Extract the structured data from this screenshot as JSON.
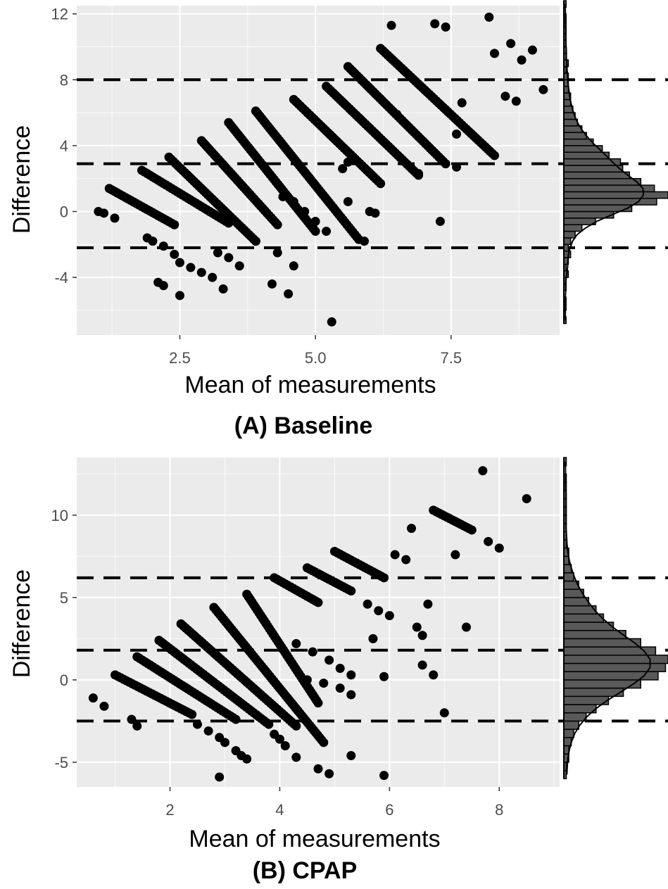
{
  "colors": {
    "panel_background": "#ebebeb",
    "grid_major": "#ffffff",
    "points": "#000000",
    "reference_lines": "#000000",
    "histogram_fill": "#595959",
    "histogram_stroke": "#000000",
    "tick_text": "#4d4d4d"
  },
  "chart_data": [
    {
      "type": "scatter",
      "caption": "(A) Baseline",
      "xlabel": "Mean of measurements",
      "ylabel": "Difference",
      "xlim": [
        0.6,
        9.5
      ],
      "ylim": [
        -7.5,
        12.5
      ],
      "x_ticks": [
        2.5,
        5.0,
        7.5
      ],
      "x_tick_labels": [
        "2.5",
        "5.0",
        "7.5"
      ],
      "y_ticks": [
        -4,
        0,
        4,
        8,
        12
      ],
      "y_tick_labels": [
        "-4",
        "0",
        "4",
        "8",
        "12"
      ],
      "grid": true,
      "reference_lines": {
        "style": "dashed",
        "mean_difference": 2.9,
        "upper_limit": 8.0,
        "lower_limit": -2.2
      },
      "diagonal_bands": [
        {
          "x_start": 1.2,
          "y_start": 1.4,
          "x_end": 2.4,
          "y_end": -0.8
        },
        {
          "x_start": 1.8,
          "y_start": 2.5,
          "x_end": 3.4,
          "y_end": -0.7
        },
        {
          "x_start": 2.3,
          "y_start": 3.3,
          "x_end": 3.9,
          "y_end": -1.8
        },
        {
          "x_start": 2.9,
          "y_start": 4.3,
          "x_end": 4.3,
          "y_end": -0.8
        },
        {
          "x_start": 3.4,
          "y_start": 5.4,
          "x_end": 5.0,
          "y_end": -1.2
        },
        {
          "x_start": 3.9,
          "y_start": 6.1,
          "x_end": 5.8,
          "y_end": -1.7
        },
        {
          "x_start": 4.6,
          "y_start": 6.8,
          "x_end": 6.2,
          "y_end": 1.7
        },
        {
          "x_start": 5.2,
          "y_start": 7.6,
          "x_end": 6.9,
          "y_end": 2.2
        },
        {
          "x_start": 5.6,
          "y_start": 8.8,
          "x_end": 7.4,
          "y_end": 2.9
        },
        {
          "x_start": 6.2,
          "y_start": 9.9,
          "x_end": 8.3,
          "y_end": 3.4
        }
      ],
      "extra_points": [
        [
          1.0,
          0.0
        ],
        [
          1.1,
          -0.1
        ],
        [
          1.3,
          -0.4
        ],
        [
          1.9,
          -1.6
        ],
        [
          2.0,
          -1.8
        ],
        [
          2.2,
          -2.1
        ],
        [
          2.4,
          -2.6
        ],
        [
          2.5,
          -3.1
        ],
        [
          2.7,
          -3.4
        ],
        [
          2.9,
          -3.7
        ],
        [
          3.1,
          -4.0
        ],
        [
          2.1,
          -4.3
        ],
        [
          2.2,
          -4.5
        ],
        [
          2.5,
          -5.1
        ],
        [
          3.2,
          -2.5
        ],
        [
          3.4,
          -2.8
        ],
        [
          3.6,
          -3.3
        ],
        [
          3.3,
          -4.7
        ],
        [
          4.2,
          -4.4
        ],
        [
          4.5,
          -5.0
        ],
        [
          4.6,
          -3.3
        ],
        [
          4.3,
          -2.5
        ],
        [
          3.9,
          -1.8
        ],
        [
          4.4,
          0.9
        ],
        [
          4.6,
          0.6
        ],
        [
          4.8,
          0.0
        ],
        [
          5.0,
          -0.6
        ],
        [
          5.2,
          -1.2
        ],
        [
          5.3,
          -6.7
        ],
        [
          5.6,
          0.6
        ],
        [
          5.9,
          -1.8
        ],
        [
          6.0,
          0.0
        ],
        [
          6.1,
          -0.1
        ],
        [
          7.3,
          -0.6
        ],
        [
          6.4,
          11.3
        ],
        [
          7.2,
          11.4
        ],
        [
          7.4,
          11.2
        ],
        [
          8.2,
          11.8
        ],
        [
          8.6,
          10.2
        ],
        [
          9.0,
          9.8
        ],
        [
          8.3,
          9.6
        ],
        [
          8.8,
          9.2
        ],
        [
          9.2,
          7.4
        ],
        [
          8.5,
          7.0
        ],
        [
          8.7,
          6.7
        ],
        [
          7.7,
          6.6
        ],
        [
          7.6,
          4.7
        ],
        [
          7.6,
          2.7
        ],
        [
          6.9,
          2.3
        ],
        [
          6.5,
          5.9
        ],
        [
          5.6,
          3.0
        ],
        [
          5.5,
          2.6
        ]
      ],
      "marginal_histogram": {
        "bin_start": -6.8,
        "bin_width": 0.4,
        "counts": [
          1,
          0,
          1,
          1,
          0,
          1,
          1,
          2,
          1,
          2,
          3,
          2,
          3,
          5,
          8,
          14,
          22,
          30,
          41,
          46,
          40,
          34,
          29,
          26,
          25,
          20,
          17,
          13,
          10,
          8,
          6,
          5,
          4,
          3,
          3,
          2,
          2,
          2,
          1,
          2,
          1,
          1,
          1,
          1,
          1,
          1,
          1,
          0,
          1
        ]
      }
    },
    {
      "type": "scatter",
      "caption": "(B) CPAP",
      "xlabel": "Mean of measurements",
      "ylabel": "Difference",
      "xlim": [
        0.3,
        9.1
      ],
      "ylim": [
        -6.5,
        13.5
      ],
      "x_ticks": [
        2,
        4,
        6,
        8
      ],
      "x_tick_labels": [
        "2",
        "4",
        "6",
        "8"
      ],
      "y_ticks": [
        -5,
        0,
        5,
        10
      ],
      "y_tick_labels": [
        "-5",
        "0",
        "5",
        "10"
      ],
      "grid": true,
      "reference_lines": {
        "style": "dashed",
        "mean_difference": 1.8,
        "upper_limit": 6.2,
        "lower_limit": -2.5
      },
      "diagonal_bands": [
        {
          "x_start": 1.0,
          "y_start": 0.3,
          "x_end": 2.4,
          "y_end": -2.1
        },
        {
          "x_start": 1.4,
          "y_start": 1.4,
          "x_end": 3.2,
          "y_end": -2.4
        },
        {
          "x_start": 1.8,
          "y_start": 2.4,
          "x_end": 3.8,
          "y_end": -2.7
        },
        {
          "x_start": 2.2,
          "y_start": 3.4,
          "x_end": 4.3,
          "y_end": -2.8
        },
        {
          "x_start": 2.8,
          "y_start": 4.4,
          "x_end": 4.8,
          "y_end": -3.8
        },
        {
          "x_start": 3.4,
          "y_start": 5.2,
          "x_end": 4.7,
          "y_end": -1.4
        },
        {
          "x_start": 3.9,
          "y_start": 6.2,
          "x_end": 4.7,
          "y_end": 4.7
        },
        {
          "x_start": 4.5,
          "y_start": 6.8,
          "x_end": 5.3,
          "y_end": 5.4
        },
        {
          "x_start": 5.0,
          "y_start": 7.8,
          "x_end": 5.9,
          "y_end": 6.2
        },
        {
          "x_start": 6.8,
          "y_start": 10.3,
          "x_end": 7.5,
          "y_end": 9.1
        }
      ],
      "extra_points": [
        [
          0.6,
          -1.1
        ],
        [
          0.8,
          -1.6
        ],
        [
          1.3,
          -2.4
        ],
        [
          1.4,
          -2.8
        ],
        [
          2.5,
          -2.7
        ],
        [
          2.7,
          -3.1
        ],
        [
          2.9,
          -3.5
        ],
        [
          3.0,
          -3.8
        ],
        [
          3.2,
          -4.3
        ],
        [
          3.3,
          -4.6
        ],
        [
          3.4,
          -4.8
        ],
        [
          3.9,
          -3.3
        ],
        [
          4.0,
          -3.6
        ],
        [
          4.1,
          -4.0
        ],
        [
          4.3,
          -4.7
        ],
        [
          4.7,
          -5.4
        ],
        [
          4.9,
          -5.7
        ],
        [
          2.9,
          -5.9
        ],
        [
          5.9,
          -5.8
        ],
        [
          5.3,
          -4.6
        ],
        [
          7.0,
          -2.0
        ],
        [
          4.3,
          2.2
        ],
        [
          4.6,
          1.7
        ],
        [
          4.9,
          1.2
        ],
        [
          5.1,
          0.7
        ],
        [
          5.3,
          0.3
        ],
        [
          4.5,
          0.0
        ],
        [
          4.8,
          -0.2
        ],
        [
          5.1,
          -0.5
        ],
        [
          5.3,
          -0.9
        ],
        [
          5.6,
          4.6
        ],
        [
          5.8,
          4.2
        ],
        [
          6.0,
          3.9
        ],
        [
          5.7,
          2.5
        ],
        [
          5.9,
          0.2
        ],
        [
          6.5,
          3.2
        ],
        [
          6.6,
          2.7
        ],
        [
          6.7,
          4.6
        ],
        [
          6.6,
          0.9
        ],
        [
          6.8,
          0.3
        ],
        [
          7.4,
          3.2
        ],
        [
          6.1,
          7.6
        ],
        [
          6.3,
          7.3
        ],
        [
          6.4,
          9.2
        ],
        [
          7.7,
          12.7
        ],
        [
          8.5,
          11.0
        ],
        [
          7.8,
          8.4
        ],
        [
          8.0,
          8.0
        ],
        [
          7.2,
          7.6
        ]
      ],
      "marginal_histogram": {
        "bin_start": -6.0,
        "bin_width": 0.5,
        "counts": [
          1,
          1,
          2,
          2,
          3,
          4,
          6,
          9,
          13,
          18,
          24,
          31,
          38,
          41,
          42,
          37,
          31,
          25,
          20,
          16,
          13,
          10,
          8,
          6,
          4,
          3,
          2,
          2,
          1,
          1,
          1,
          1,
          1,
          1,
          1,
          1,
          1,
          0,
          1
        ]
      }
    }
  ]
}
